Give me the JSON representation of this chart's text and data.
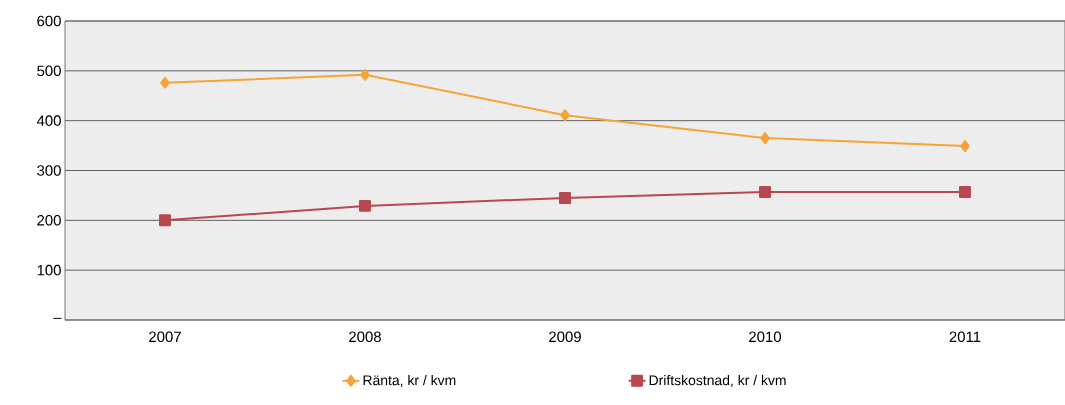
{
  "chart_data": {
    "type": "line",
    "categories": [
      "2007",
      "2008",
      "2009",
      "2010",
      "2011"
    ],
    "series": [
      {
        "name": "Ränta, kr / kvm",
        "color": "#f5a436",
        "marker": "diamond",
        "values": [
          476,
          492,
          411,
          365,
          349
        ]
      },
      {
        "name": "Driftskostnad, kr / kvm",
        "color": "#b8474f",
        "marker": "square",
        "values": [
          200,
          229,
          245,
          257,
          257
        ]
      }
    ],
    "ylim": [
      0,
      600
    ],
    "yticks": [
      {
        "value": 0,
        "label": "–"
      },
      100,
      200,
      300,
      400,
      500,
      600
    ],
    "grid": "y",
    "legend": "bottom",
    "line_style": "solid"
  }
}
